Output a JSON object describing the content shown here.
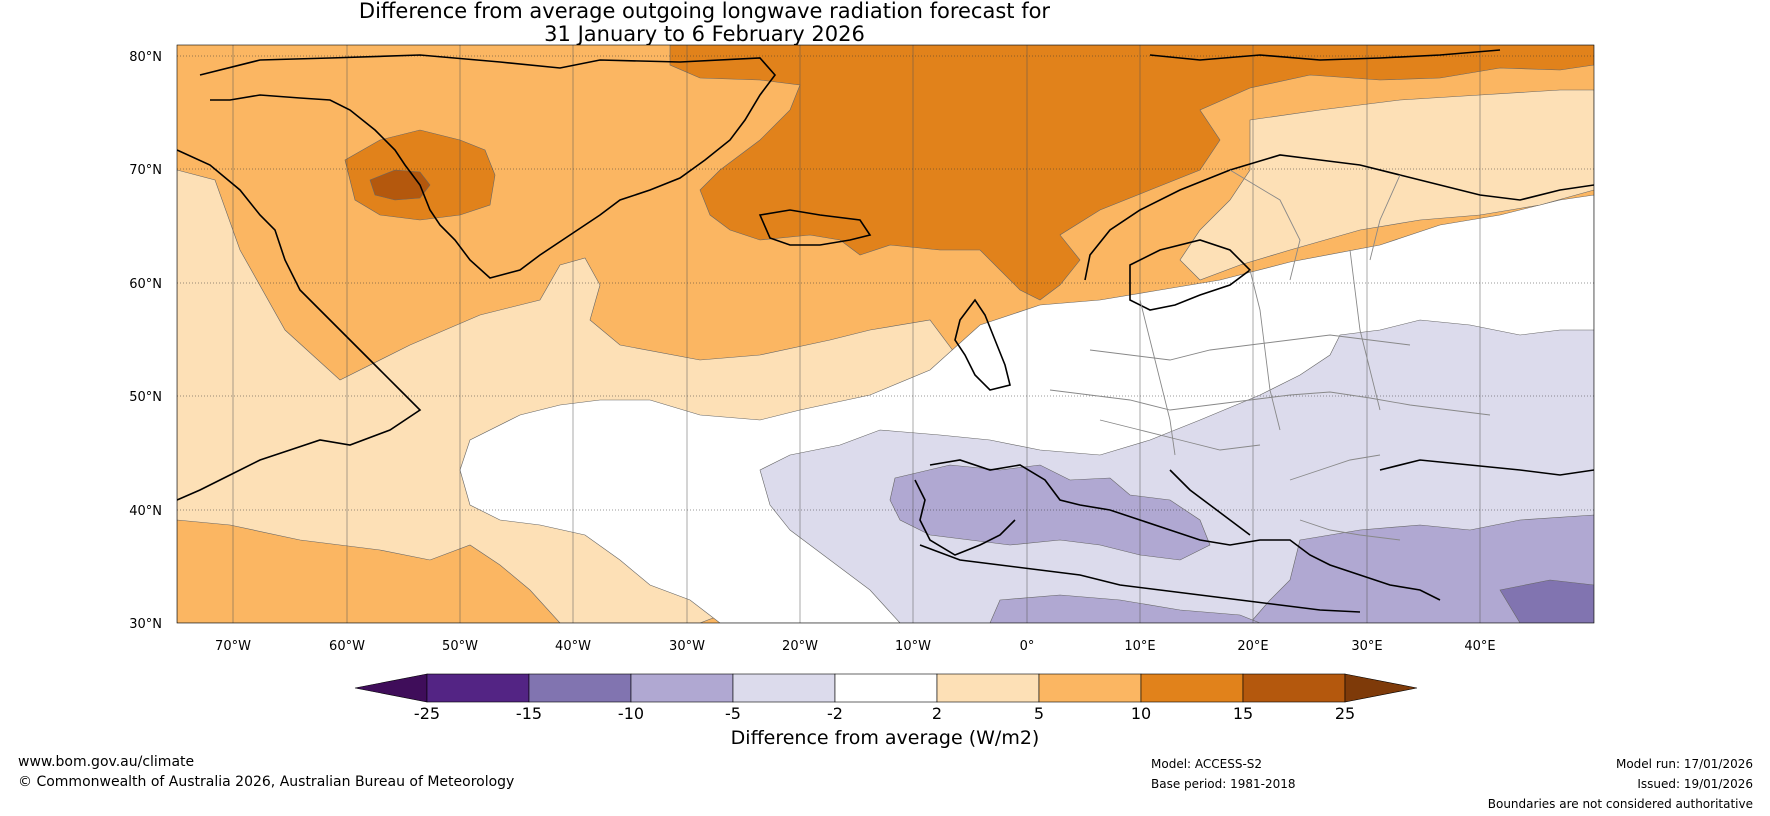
{
  "title": {
    "line1": "Difference from average outgoing longwave radiation forecast for",
    "line2": "31 January to 6 February 2026"
  },
  "axes": {
    "lat_labels": [
      "80°N",
      "70°N",
      "60°N",
      "50°N",
      "40°N",
      "30°N"
    ],
    "lat_values": [
      80,
      70,
      60,
      50,
      40,
      30
    ],
    "lon_labels": [
      "70°W",
      "60°W",
      "50°W",
      "40°W",
      "30°W",
      "20°W",
      "10°W",
      "0°",
      "10°E",
      "20°E",
      "30°E",
      "40°E"
    ],
    "lon_values": [
      -70,
      -60,
      -50,
      -40,
      -30,
      -20,
      -10,
      0,
      10,
      20,
      30,
      40
    ],
    "lon_range": [
      -75,
      50
    ],
    "lat_range": [
      30,
      81
    ]
  },
  "colorbar": {
    "title": "Difference from average (W/m2)",
    "tick_labels": [
      "-25",
      "-15",
      "-10",
      "-5",
      "-2",
      "2",
      "5",
      "10",
      "15",
      "25"
    ],
    "colors": [
      "#3f0d5a",
      "#532484",
      "#8174b0",
      "#b0a8d2",
      "#dcdbec",
      "#ffffff",
      "#fde0b6",
      "#fbb662",
      "#e1821b",
      "#b4580d",
      "#7e3a09"
    ]
  },
  "palette": {
    "ocean_default": "#fbb662",
    "coast": "#000000",
    "border": "#888888"
  },
  "footer": {
    "website": "www.bom.gov.au/climate",
    "copyright": "© Commonwealth of Australia 2026, Australian Bureau of Meteorology",
    "model": "Model: ACCESS-S2",
    "base_period": "Base period: 1981-2018",
    "model_run": "Model run: 17/01/2026",
    "issued": "Issued: 19/01/2026",
    "boundaries": "Boundaries are not considered authoritative"
  }
}
